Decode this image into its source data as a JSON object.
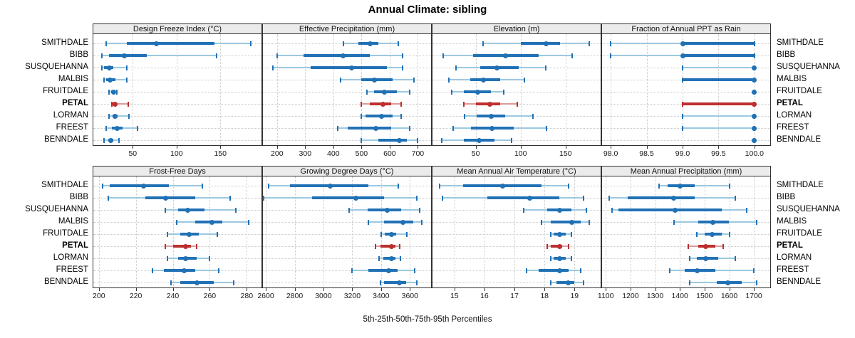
{
  "title": "Annual Climate: sibling",
  "caption": "5th-25th-50th-75th-95th Percentiles",
  "highlighted_station": "PETAL",
  "colors": {
    "blue": "#2171B5",
    "blue_light": "#9CC8E0",
    "red": "#BE2F2F",
    "red_light": "#DA9B9B",
    "header_bg": "#EBEBEB",
    "panel_border": "#333333",
    "gridline": "#C9C9C9",
    "text": "#000000"
  },
  "chart_data": {
    "type": "scatter",
    "subtype": "horizontal-percentile-interval-trellis",
    "percentiles": [
      5,
      25,
      50,
      75,
      95
    ],
    "layout": {
      "rows": 2,
      "cols": 4,
      "legend": "none",
      "grid": "dotted",
      "station_labels": "both-sides"
    },
    "categories": [
      "SMITHDALE",
      "BIBB",
      "SUSQUEHANNA",
      "MALBIS",
      "FRUITDALE",
      "PETAL",
      "LORMAN",
      "FREEST",
      "BENNDALE"
    ],
    "panels": [
      {
        "title": "Design Freeze Index (°C)",
        "ticks": [
          50,
          100,
          150
        ],
        "tick_labels": [
          "50",
          "100",
          "150"
        ],
        "xlim": [
          5,
          197
        ],
        "values": [
          [
            20,
            43,
            77,
            143,
            185
          ],
          [
            15,
            23,
            40,
            66,
            146
          ],
          [
            15,
            17,
            23,
            28,
            43
          ],
          [
            17,
            20,
            24,
            30,
            43
          ],
          [
            23,
            25,
            28,
            30,
            32
          ],
          [
            26,
            27,
            30,
            32,
            45
          ],
          [
            23,
            27,
            30,
            33,
            46
          ],
          [
            20,
            26,
            32,
            38,
            55
          ],
          [
            17,
            22,
            25,
            28,
            34
          ]
        ]
      },
      {
        "title": "Effective Precipitation (mm)",
        "ticks": [
          200,
          300,
          400,
          500,
          600,
          700
        ],
        "tick_labels": [
          "200",
          "300",
          "400",
          "500",
          "600",
          "700"
        ],
        "xlim": [
          150,
          747
        ],
        "values": [
          [
            435,
            490,
            530,
            560,
            630
          ],
          [
            200,
            295,
            435,
            530,
            645
          ],
          [
            185,
            320,
            465,
            590,
            645
          ],
          [
            425,
            500,
            545,
            610,
            685
          ],
          [
            520,
            545,
            580,
            625,
            670
          ],
          [
            500,
            530,
            575,
            605,
            640
          ],
          [
            500,
            515,
            570,
            610,
            640
          ],
          [
            415,
            450,
            550,
            605,
            670
          ],
          [
            500,
            560,
            635,
            660,
            700
          ]
        ]
      },
      {
        "title": "Elevation (m)",
        "ticks": [
          50,
          100,
          150
        ],
        "tick_labels": [
          "50",
          "100",
          "150"
        ],
        "xlim": [
          2,
          189
        ],
        "values": [
          [
            58,
            100,
            128,
            144,
            176
          ],
          [
            14,
            47,
            83,
            120,
            157
          ],
          [
            28,
            55,
            74,
            98,
            128
          ],
          [
            20,
            44,
            59,
            77,
            104
          ],
          [
            23,
            37,
            52,
            67,
            81
          ],
          [
            37,
            50,
            66,
            77,
            96
          ],
          [
            38,
            51,
            67,
            83,
            114
          ],
          [
            25,
            45,
            68,
            92,
            129
          ],
          [
            12,
            37,
            54,
            71,
            90
          ]
        ]
      },
      {
        "title": "Fraction of Annual PPT as Rain",
        "ticks": [
          98,
          98.5,
          99,
          99.5,
          100
        ],
        "tick_labels": [
          "98.0",
          "98.5",
          "99.0",
          "99.5",
          "100.0"
        ],
        "xlim": [
          97.88,
          100.22
        ],
        "values": [
          [
            98,
            99,
            99,
            100,
            100
          ],
          [
            98,
            99,
            99,
            100,
            100
          ],
          [
            99,
            100,
            100,
            100,
            100
          ],
          [
            99,
            99,
            100,
            100,
            100
          ],
          [
            100,
            100,
            100,
            100,
            100
          ],
          [
            99,
            99,
            100,
            100,
            100
          ],
          [
            99,
            100,
            100,
            100,
            100
          ],
          [
            99,
            100,
            100,
            100,
            100
          ],
          [
            100,
            100,
            100,
            100,
            100
          ]
        ]
      },
      {
        "title": "Frost-Free Days",
        "ticks": [
          200,
          220,
          240,
          260,
          280
        ],
        "tick_labels": [
          "200",
          "220",
          "240",
          "260",
          "280"
        ],
        "xlim": [
          197,
          288
        ],
        "values": [
          [
            202,
            206,
            224,
            238,
            256
          ],
          [
            205,
            225,
            236,
            252,
            271
          ],
          [
            236,
            243,
            248,
            257,
            274
          ],
          [
            242,
            252,
            261,
            267,
            281
          ],
          [
            237,
            244,
            249,
            254,
            264
          ],
          [
            236,
            240,
            247,
            250,
            253
          ],
          [
            237,
            243,
            247,
            253,
            260
          ],
          [
            229,
            235,
            246,
            252,
            265
          ],
          [
            239,
            244,
            253,
            262,
            273
          ]
        ]
      },
      {
        "title": "Growing Degree Days (°C)",
        "ticks": [
          2600,
          2800,
          3000,
          3200,
          3400,
          3600
        ],
        "tick_labels": [
          "2600",
          "2800",
          "3000",
          "3200",
          "3400",
          "3600"
        ],
        "xlim": [
          2580,
          3747
        ],
        "values": [
          [
            2620,
            2770,
            3045,
            3310,
            3520
          ],
          [
            2585,
            2920,
            3225,
            3420,
            3650
          ],
          [
            3180,
            3305,
            3445,
            3540,
            3670
          ],
          [
            3310,
            3420,
            3550,
            3625,
            3680
          ],
          [
            3400,
            3425,
            3470,
            3505,
            3580
          ],
          [
            3360,
            3395,
            3470,
            3500,
            3530
          ],
          [
            3385,
            3415,
            3470,
            3500,
            3535
          ],
          [
            3200,
            3310,
            3455,
            3515,
            3635
          ],
          [
            3395,
            3420,
            3525,
            3575,
            3650
          ]
        ]
      },
      {
        "title": "Mean Annual Air Temperature (°C)",
        "ticks": [
          15,
          16,
          17,
          18,
          19
        ],
        "tick_labels": [
          "15",
          "16",
          "17",
          "18",
          "19"
        ],
        "xlim": [
          14.27,
          19.87
        ],
        "values": [
          [
            14.5,
            15.3,
            16.6,
            17.9,
            18.8
          ],
          [
            14.6,
            16.1,
            17.5,
            18.5,
            19.3
          ],
          [
            17.3,
            18.1,
            18.5,
            18.9,
            19.4
          ],
          [
            17.9,
            18.2,
            18.9,
            19.2,
            19.5
          ],
          [
            18.2,
            18.3,
            18.5,
            18.7,
            18.9
          ],
          [
            18.1,
            18.2,
            18.5,
            18.6,
            18.8
          ],
          [
            18.2,
            18.3,
            18.5,
            18.7,
            18.9
          ],
          [
            17.4,
            17.8,
            18.5,
            18.8,
            19.2
          ],
          [
            18.2,
            18.4,
            18.8,
            19.0,
            19.3
          ]
        ]
      },
      {
        "title": "Mean Annual Precipitation (mm)",
        "ticks": [
          1100,
          1200,
          1300,
          1400,
          1500,
          1600,
          1700
        ],
        "tick_labels": [
          "1100",
          "1200",
          "1300",
          "1400",
          "1500",
          "1600",
          "1700"
        ],
        "xlim": [
          1085,
          1766
        ],
        "values": [
          [
            1315,
            1350,
            1400,
            1460,
            1600
          ],
          [
            1115,
            1190,
            1375,
            1460,
            1625
          ],
          [
            1125,
            1150,
            1380,
            1570,
            1670
          ],
          [
            1375,
            1475,
            1535,
            1600,
            1710
          ],
          [
            1470,
            1500,
            1530,
            1570,
            1600
          ],
          [
            1435,
            1475,
            1505,
            1545,
            1575
          ],
          [
            1440,
            1470,
            1505,
            1555,
            1625
          ],
          [
            1360,
            1420,
            1470,
            1545,
            1700
          ],
          [
            1440,
            1550,
            1595,
            1650,
            1710
          ]
        ]
      }
    ]
  }
}
